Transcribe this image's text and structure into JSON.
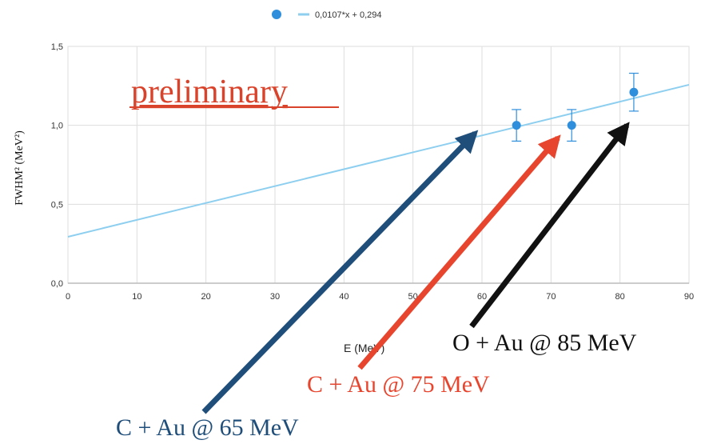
{
  "chart_data": {
    "type": "scatter",
    "xlabel": "E (MeV)",
    "ylabel": "FWHM² (MeV²)",
    "xlim": [
      0,
      90
    ],
    "ylim": [
      0,
      1.5
    ],
    "xticks": [
      "0",
      "10",
      "20",
      "30",
      "40",
      "50",
      "60",
      "70",
      "80",
      "90"
    ],
    "yticks": [
      "0,0",
      "0,5",
      "1,0",
      "1,5"
    ],
    "grid": true,
    "legend": {
      "placement": "top-center",
      "fit_label": "0,0107*x + 0,294"
    },
    "series": [
      {
        "marker": "circle",
        "x": [
          65,
          73,
          82
        ],
        "y": [
          1.0,
          1.0,
          1.21
        ],
        "yerr": [
          0.1,
          0.1,
          0.12
        ]
      }
    ],
    "fit": {
      "slope": 0.0107,
      "intercept": 0.294,
      "x_range": [
        0,
        90
      ]
    },
    "annotations": [
      {
        "text": "preliminary",
        "color": "#d9432b"
      },
      {
        "text": "C + Au @ 65 MeV",
        "color": "#1f4e7a",
        "target": {
          "x": 59,
          "y": 0.95
        }
      },
      {
        "text": "C + Au @ 75 MeV",
        "color": "#e8452e",
        "target": {
          "x": 71,
          "y": 0.92
        }
      },
      {
        "text": "O + Au @ 85 MeV",
        "color": "#111111",
        "target": {
          "x": 81,
          "y": 1.0
        }
      }
    ],
    "colors": {
      "points": "#2f8fdc",
      "fit_line": "#8ecff0",
      "grid": "#dddddd",
      "axis": "#bbbbbb"
    }
  }
}
